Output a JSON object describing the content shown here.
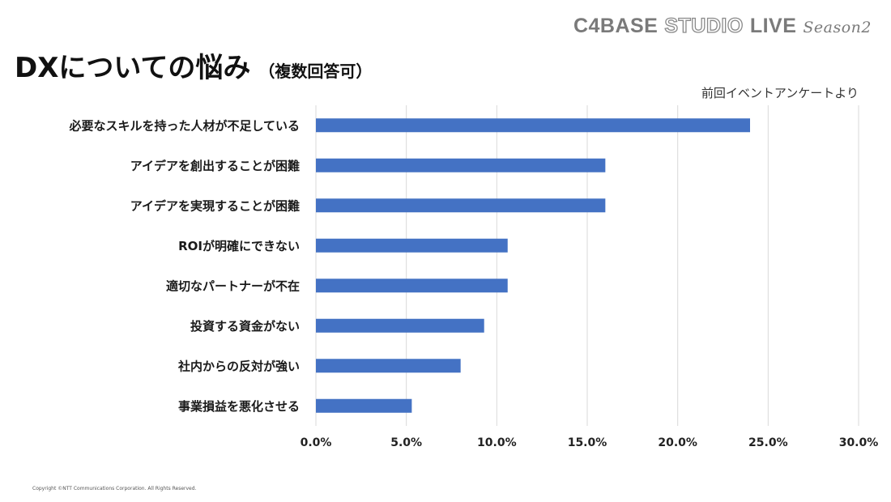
{
  "header": {
    "brand_part1": "C4BASE",
    "brand_part2": "STUDIO",
    "brand_part3": "LIVE",
    "brand_season": "Season2",
    "title": "DXについての悩み",
    "subtitle": "（複数回答可）",
    "source_note": "前回イベントアンケートより"
  },
  "chart_data": {
    "type": "bar",
    "orientation": "horizontal",
    "categories": [
      "必要なスキルを持った人材が不足している",
      "アイデアを創出することが困難",
      "アイデアを実現することが困難",
      "ROIが明確にできない",
      "適切なパートナーが不在",
      "投資する資金がない",
      "社内からの反対が強い",
      "事業損益を悪化させる"
    ],
    "values": [
      24.0,
      16.0,
      16.0,
      10.6,
      10.6,
      9.3,
      8.0,
      5.3
    ],
    "xlim": [
      0,
      30
    ],
    "xticks": [
      "0.0%",
      "5.0%",
      "10.0%",
      "15.0%",
      "20.0%",
      "25.0%",
      "30.0%"
    ],
    "bar_color": "#4472C4",
    "grid": true
  },
  "footer": {
    "copyright": "Copyright ©NTT Communications Corporation. All Rights Reserved."
  }
}
